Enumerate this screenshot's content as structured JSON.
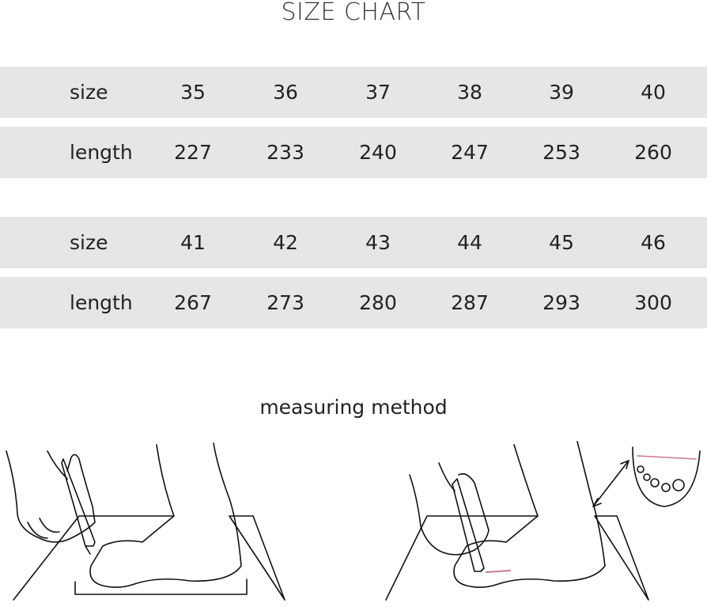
{
  "title": "SIZE CHART",
  "tables": [
    {
      "rows": [
        {
          "label": "size",
          "values": [
            "35",
            "36",
            "37",
            "38",
            "39",
            "40"
          ]
        },
        {
          "label": "length",
          "values": [
            "227",
            "233",
            "240",
            "247",
            "253",
            "260"
          ]
        }
      ]
    },
    {
      "rows": [
        {
          "label": "size",
          "values": [
            "41",
            "42",
            "43",
            "44",
            "45",
            "46"
          ]
        },
        {
          "label": "length",
          "values": [
            "267",
            "273",
            "280",
            "287",
            "293",
            "300"
          ]
        }
      ]
    }
  ],
  "measuring": {
    "label": "measuring method"
  },
  "colors": {
    "band": "#e6e6e6",
    "mark": "#c77a8a"
  }
}
